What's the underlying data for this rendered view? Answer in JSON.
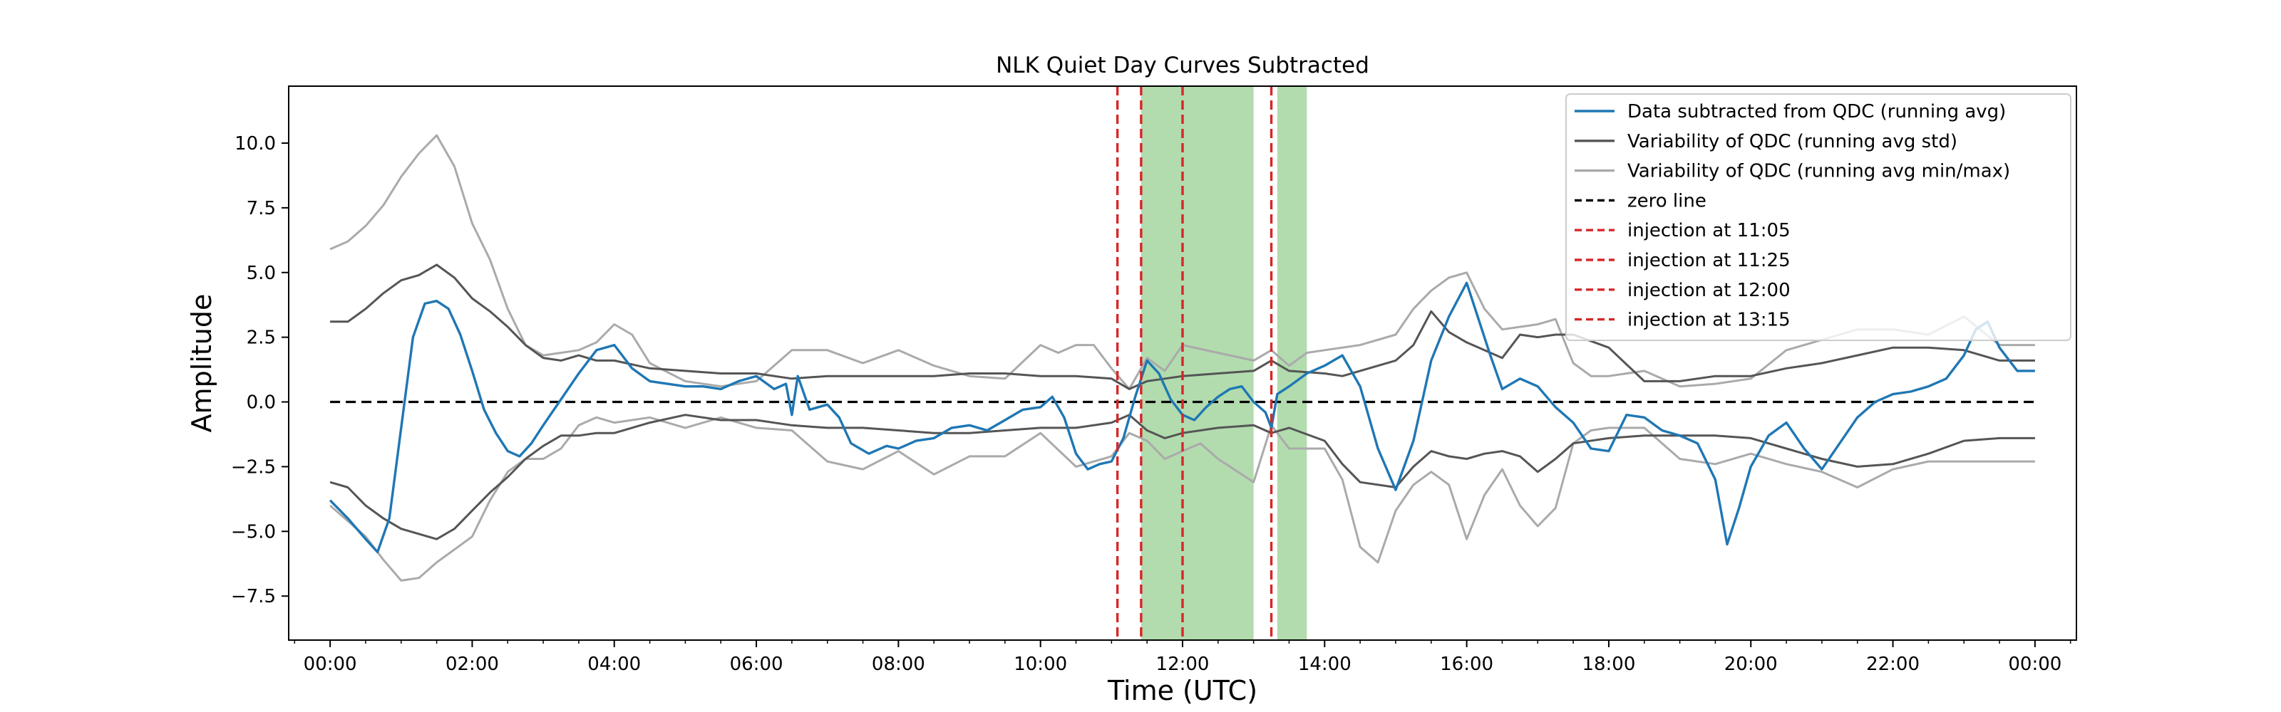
{
  "chart_data": {
    "type": "line",
    "title": "NLK Quiet Day Curves Subtracted",
    "xlabel": "Time (UTC)",
    "ylabel": "Amplitude",
    "x_unit": "hours UTC",
    "xlim": [
      "-00:35",
      "24:35"
    ],
    "ylim": [
      -9.2,
      12.2
    ],
    "x_ticks": [
      "00:00",
      "02:00",
      "04:00",
      "06:00",
      "08:00",
      "10:00",
      "12:00",
      "14:00",
      "16:00",
      "18:00",
      "20:00",
      "22:00",
      "00:00"
    ],
    "y_ticks": [
      "−7.5",
      "−5.0",
      "−2.5",
      "0.0",
      "2.5",
      "5.0",
      "7.5",
      "10.0"
    ],
    "grid": false,
    "legend_position": "top-right",
    "colors": {
      "data": "#1f77b4",
      "std": "#555555",
      "minmax": "#aaaaaa",
      "zero": "#000000",
      "injection": "#d62728",
      "shade": "#b2dcae"
    },
    "shaded_regions": [
      {
        "start": "11:25",
        "end": "13:00"
      },
      {
        "start": "13:20",
        "end": "13:45"
      }
    ],
    "series": [
      {
        "name": "Data subtracted from QDC (running avg)",
        "style": "solid",
        "color": "#1f77b4",
        "x": [
          "00:00",
          "00:15",
          "00:30",
          "00:40",
          "00:50",
          "01:00",
          "01:10",
          "01:20",
          "01:30",
          "01:40",
          "01:50",
          "02:00",
          "02:10",
          "02:20",
          "02:30",
          "02:40",
          "02:50",
          "03:00",
          "03:15",
          "03:30",
          "03:45",
          "04:00",
          "04:15",
          "04:30",
          "04:45",
          "05:00",
          "05:15",
          "05:30",
          "05:45",
          "06:00",
          "06:15",
          "06:25",
          "06:30",
          "06:35",
          "06:45",
          "07:00",
          "07:10",
          "07:20",
          "07:35",
          "07:50",
          "08:00",
          "08:15",
          "08:30",
          "08:45",
          "09:00",
          "09:15",
          "09:30",
          "09:45",
          "10:00",
          "10:10",
          "10:20",
          "10:30",
          "10:40",
          "10:50",
          "11:00",
          "11:10",
          "11:20",
          "11:30",
          "11:40",
          "11:50",
          "12:00",
          "12:10",
          "12:20",
          "12:30",
          "12:40",
          "12:50",
          "13:00",
          "13:10",
          "13:15",
          "13:20",
          "13:30",
          "13:45",
          "14:00",
          "14:15",
          "14:30",
          "14:45",
          "15:00",
          "15:15",
          "15:30",
          "15:45",
          "16:00",
          "16:10",
          "16:20",
          "16:30",
          "16:45",
          "17:00",
          "17:15",
          "17:30",
          "17:45",
          "18:00",
          "18:15",
          "18:30",
          "18:45",
          "19:00",
          "19:15",
          "19:30",
          "19:40",
          "19:50",
          "20:00",
          "20:15",
          "20:30",
          "20:45",
          "21:00",
          "21:15",
          "21:30",
          "21:45",
          "22:00",
          "22:15",
          "22:30",
          "22:45",
          "23:00",
          "23:10",
          "23:20",
          "23:30",
          "23:45",
          "24:00"
        ],
        "y": [
          -3.8,
          -4.5,
          -5.3,
          -5.8,
          -4.5,
          -1.0,
          2.5,
          3.8,
          3.9,
          3.6,
          2.6,
          1.2,
          -0.3,
          -1.2,
          -1.9,
          -2.1,
          -1.6,
          -0.9,
          0.1,
          1.1,
          2.0,
          2.2,
          1.3,
          0.8,
          0.7,
          0.6,
          0.6,
          0.5,
          0.8,
          1.0,
          0.5,
          0.7,
          -0.5,
          1.0,
          -0.3,
          -0.1,
          -0.6,
          -1.6,
          -2.0,
          -1.7,
          -1.8,
          -1.5,
          -1.4,
          -1.0,
          -0.9,
          -1.1,
          -0.7,
          -0.3,
          -0.2,
          0.2,
          -0.6,
          -2.0,
          -2.6,
          -2.4,
          -2.3,
          -1.4,
          0.2,
          1.6,
          1.1,
          0.1,
          -0.5,
          -0.7,
          -0.2,
          0.2,
          0.5,
          0.6,
          0.0,
          -0.4,
          -1.0,
          0.3,
          0.6,
          1.1,
          1.4,
          1.8,
          0.6,
          -1.8,
          -3.4,
          -1.5,
          1.6,
          3.3,
          4.6,
          3.2,
          1.8,
          0.5,
          0.9,
          0.6,
          -0.2,
          -0.8,
          -1.8,
          -1.9,
          -0.5,
          -0.6,
          -1.1,
          -1.3,
          -1.6,
          -3.0,
          -5.5,
          -4.1,
          -2.5,
          -1.3,
          -0.8,
          -1.8,
          -2.6,
          -1.6,
          -0.6,
          0.0,
          0.3,
          0.4,
          0.6,
          0.9,
          1.8,
          2.8,
          3.1,
          2.1,
          1.2,
          1.2
        ]
      },
      {
        "name": "Variability of QDC (running avg std)",
        "style": "solid",
        "color": "#555555",
        "bands": [
          {
            "x": [
              "00:00",
              "00:15",
              "00:30",
              "00:45",
              "01:00",
              "01:15",
              "01:30",
              "01:45",
              "02:00",
              "02:15",
              "02:30",
              "02:45",
              "03:00",
              "03:15",
              "03:30",
              "03:45",
              "04:00",
              "04:30",
              "05:00",
              "05:30",
              "06:00",
              "06:30",
              "07:00",
              "07:30",
              "08:00",
              "08:30",
              "09:00",
              "09:30",
              "10:00",
              "10:30",
              "11:00",
              "11:15",
              "11:30",
              "11:45",
              "12:00",
              "12:30",
              "13:00",
              "13:15",
              "13:30",
              "14:00",
              "14:15",
              "14:30",
              "15:00",
              "15:15",
              "15:30",
              "15:45",
              "16:00",
              "16:15",
              "16:30",
              "16:45",
              "17:00",
              "17:15",
              "17:30",
              "18:00",
              "18:30",
              "19:00",
              "19:30",
              "20:00",
              "20:30",
              "21:00",
              "21:30",
              "22:00",
              "22:30",
              "23:00",
              "23:30",
              "24:00"
            ],
            "y": [
              3.1,
              3.1,
              3.6,
              4.2,
              4.7,
              4.9,
              5.3,
              4.8,
              4.0,
              3.5,
              2.9,
              2.2,
              1.7,
              1.6,
              1.8,
              1.6,
              1.6,
              1.3,
              1.2,
              1.1,
              1.1,
              0.9,
              1.0,
              1.0,
              1.0,
              1.0,
              1.1,
              1.1,
              1.0,
              1.0,
              0.9,
              0.5,
              0.8,
              0.9,
              1.0,
              1.1,
              1.2,
              1.6,
              1.2,
              1.1,
              1.0,
              1.2,
              1.6,
              2.2,
              3.5,
              2.7,
              2.3,
              2.0,
              1.7,
              2.6,
              2.5,
              2.6,
              2.6,
              2.1,
              0.8,
              0.8,
              1.0,
              1.0,
              1.3,
              1.5,
              1.8,
              2.1,
              2.1,
              2.0,
              1.6,
              1.6
            ]
          },
          {
            "x": [
              "00:00",
              "00:15",
              "00:30",
              "00:45",
              "01:00",
              "01:15",
              "01:30",
              "01:45",
              "02:00",
              "02:15",
              "02:30",
              "02:45",
              "03:00",
              "03:15",
              "03:30",
              "03:45",
              "04:00",
              "04:30",
              "05:00",
              "05:30",
              "06:00",
              "06:30",
              "07:00",
              "07:30",
              "08:00",
              "08:30",
              "09:00",
              "09:30",
              "10:00",
              "10:30",
              "11:00",
              "11:15",
              "11:30",
              "11:45",
              "12:00",
              "12:30",
              "13:00",
              "13:15",
              "13:30",
              "14:00",
              "14:15",
              "14:30",
              "15:00",
              "15:15",
              "15:30",
              "15:45",
              "16:00",
              "16:15",
              "16:30",
              "16:45",
              "17:00",
              "17:15",
              "17:30",
              "18:00",
              "18:30",
              "19:00",
              "19:30",
              "20:00",
              "20:30",
              "21:00",
              "21:30",
              "22:00",
              "22:30",
              "23:00",
              "23:30",
              "24:00"
            ],
            "y": [
              -3.1,
              -3.3,
              -4.0,
              -4.5,
              -4.9,
              -5.1,
              -5.3,
              -4.9,
              -4.2,
              -3.5,
              -2.9,
              -2.2,
              -1.7,
              -1.3,
              -1.3,
              -1.2,
              -1.2,
              -0.8,
              -0.5,
              -0.7,
              -0.7,
              -0.9,
              -1.0,
              -1.0,
              -1.1,
              -1.2,
              -1.2,
              -1.1,
              -1.0,
              -1.0,
              -0.8,
              -0.5,
              -1.1,
              -1.4,
              -1.2,
              -1.0,
              -0.9,
              -1.2,
              -1.0,
              -1.5,
              -2.4,
              -3.1,
              -3.3,
              -2.5,
              -1.9,
              -2.1,
              -2.2,
              -2.0,
              -1.9,
              -2.1,
              -2.7,
              -2.2,
              -1.6,
              -1.4,
              -1.3,
              -1.3,
              -1.3,
              -1.4,
              -1.8,
              -2.2,
              -2.5,
              -2.4,
              -2.0,
              -1.5,
              -1.4,
              -1.4
            ]
          }
        ]
      },
      {
        "name": "Variability of QDC (running avg min/max)",
        "style": "solid",
        "color": "#aaaaaa",
        "bands": [
          {
            "x": [
              "00:00",
              "00:15",
              "00:30",
              "00:45",
              "01:00",
              "01:15",
              "01:30",
              "01:45",
              "02:00",
              "02:15",
              "02:30",
              "02:45",
              "03:00",
              "03:15",
              "03:30",
              "03:45",
              "04:00",
              "04:15",
              "04:30",
              "05:00",
              "05:30",
              "06:00",
              "06:30",
              "07:00",
              "07:30",
              "08:00",
              "08:30",
              "09:00",
              "09:30",
              "10:00",
              "10:15",
              "10:30",
              "10:45",
              "11:00",
              "11:15",
              "11:30",
              "11:45",
              "12:00",
              "12:30",
              "13:00",
              "13:15",
              "13:30",
              "13:45",
              "14:00",
              "14:30",
              "15:00",
              "15:15",
              "15:30",
              "15:45",
              "16:00",
              "16:15",
              "16:30",
              "17:00",
              "17:15",
              "17:30",
              "17:45",
              "18:00",
              "18:30",
              "19:00",
              "19:30",
              "20:00",
              "20:30",
              "21:00",
              "21:30",
              "22:00",
              "22:30",
              "23:00",
              "23:30",
              "24:00"
            ],
            "y": [
              5.9,
              6.2,
              6.8,
              7.6,
              8.7,
              9.6,
              10.3,
              9.1,
              6.9,
              5.5,
              3.6,
              2.2,
              1.8,
              1.9,
              2.0,
              2.3,
              3.0,
              2.6,
              1.5,
              0.8,
              0.6,
              0.8,
              2.0,
              2.0,
              1.5,
              2.0,
              1.4,
              1.0,
              0.9,
              2.2,
              1.9,
              2.2,
              2.2,
              1.3,
              0.5,
              1.7,
              1.2,
              2.2,
              1.9,
              1.6,
              2.0,
              1.4,
              1.9,
              2.0,
              2.2,
              2.6,
              3.6,
              4.3,
              4.8,
              5.0,
              3.6,
              2.8,
              3.0,
              3.2,
              1.5,
              1.0,
              1.0,
              1.2,
              0.6,
              0.7,
              0.9,
              2.0,
              2.4,
              2.8,
              2.8,
              2.6,
              3.3,
              2.2,
              2.2
            ]
          },
          {
            "x": [
              "00:00",
              "00:15",
              "00:30",
              "00:45",
              "01:00",
              "01:15",
              "01:30",
              "01:45",
              "02:00",
              "02:15",
              "02:30",
              "02:45",
              "03:00",
              "03:15",
              "03:30",
              "03:45",
              "04:00",
              "04:30",
              "05:00",
              "05:30",
              "06:00",
              "06:30",
              "07:00",
              "07:30",
              "08:00",
              "08:30",
              "09:00",
              "09:30",
              "10:00",
              "10:30",
              "11:00",
              "11:15",
              "11:30",
              "11:45",
              "12:00",
              "12:15",
              "12:30",
              "13:00",
              "13:15",
              "13:30",
              "14:00",
              "14:15",
              "14:30",
              "14:45",
              "15:00",
              "15:15",
              "15:30",
              "15:45",
              "16:00",
              "16:15",
              "16:30",
              "16:45",
              "17:00",
              "17:15",
              "17:30",
              "17:45",
              "18:00",
              "18:30",
              "19:00",
              "19:30",
              "20:00",
              "20:30",
              "21:00",
              "21:30",
              "22:00",
              "22:30",
              "23:00",
              "23:30",
              "24:00"
            ],
            "y": [
              -4.0,
              -4.6,
              -5.2,
              -6.1,
              -6.9,
              -6.8,
              -6.2,
              -5.7,
              -5.2,
              -3.8,
              -2.7,
              -2.2,
              -2.2,
              -1.8,
              -0.9,
              -0.6,
              -0.8,
              -0.6,
              -1.0,
              -0.6,
              -1.0,
              -1.1,
              -2.3,
              -2.6,
              -1.9,
              -2.8,
              -2.1,
              -2.1,
              -1.2,
              -2.5,
              -2.1,
              -1.2,
              -1.5,
              -2.2,
              -1.9,
              -1.6,
              -2.2,
              -3.1,
              -0.9,
              -1.8,
              -1.8,
              -3.0,
              -5.6,
              -6.2,
              -4.2,
              -3.2,
              -2.7,
              -3.2,
              -5.3,
              -3.6,
              -2.6,
              -4.0,
              -4.8,
              -4.1,
              -1.6,
              -1.1,
              -1.0,
              -1.0,
              -2.2,
              -2.4,
              -2.0,
              -2.4,
              -2.7,
              -3.3,
              -2.6,
              -2.3,
              -2.3,
              -2.3,
              -2.3
            ]
          }
        ]
      },
      {
        "name": "zero line",
        "style": "dashed",
        "color": "#000000",
        "x": [
          "00:00",
          "24:00"
        ],
        "y": [
          0,
          0
        ]
      }
    ],
    "vertical_lines": [
      {
        "name": "injection at 11:05",
        "x": "11:05",
        "style": "dashed",
        "color": "#d62728"
      },
      {
        "name": "injection at 11:25",
        "x": "11:25",
        "style": "dashed",
        "color": "#d62728"
      },
      {
        "name": "injection at 12:00",
        "x": "12:00",
        "style": "dashed",
        "color": "#d62728"
      },
      {
        "name": "injection at 13:15",
        "x": "13:15",
        "style": "dashed",
        "color": "#d62728"
      }
    ]
  }
}
